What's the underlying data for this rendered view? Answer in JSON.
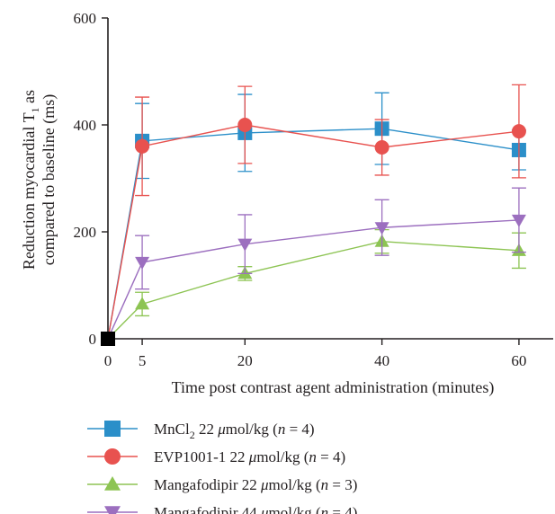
{
  "chart_data": {
    "type": "line",
    "xlabel": "Time post contrast agent administration (minutes)",
    "ylabel_line1_prefix": "Reduction myocardial T",
    "ylabel_line1_sub": "1",
    "ylabel_line1_suffix": " as",
    "ylabel_line2": "compared to baseline (ms)",
    "x_ticks": [
      "0",
      "5",
      "20",
      "40",
      "60"
    ],
    "y_ticks": [
      "0",
      "200",
      "400",
      "600"
    ],
    "xlim": [
      0,
      65
    ],
    "ylim": [
      0,
      600
    ],
    "grid": false,
    "legend_position": "bottom-left",
    "series": [
      {
        "name": "MnCl2 22 μmol/kg (n = 4)",
        "legend": {
          "pre": "MnCl",
          "sub": "2",
          "mid": " 22 ",
          "unit": "μ",
          "post": "mol/kg (",
          "n": "n",
          "tail": " = 4)"
        },
        "color": "#2b8fc9",
        "marker": "square",
        "x": [
          0,
          5,
          20,
          40,
          60
        ],
        "y": [
          0,
          370,
          385,
          393,
          353
        ],
        "err": [
          0,
          70,
          72,
          67,
          37
        ]
      },
      {
        "name": "EVP1001-1 22 μmol/kg (n = 4)",
        "legend": {
          "pre": "EVP1001-1",
          "sub": "",
          "mid": " 22 ",
          "unit": "μ",
          "post": "mol/kg (",
          "n": "n",
          "tail": " = 4)"
        },
        "color": "#e8524f",
        "marker": "circle",
        "x": [
          0,
          5,
          20,
          40,
          60
        ],
        "y": [
          0,
          360,
          400,
          358,
          388
        ],
        "err": [
          0,
          92,
          72,
          52,
          87
        ]
      },
      {
        "name": "Mangafodipir 22 μmol/kg (n = 3)",
        "legend": {
          "pre": "Mangafodipir",
          "sub": "",
          "mid": " 22 ",
          "unit": "μ",
          "post": "mol/kg (",
          "n": "n",
          "tail": " = 3)"
        },
        "color": "#8dc453",
        "marker": "triangle-up",
        "x": [
          0,
          5,
          20,
          40,
          60
        ],
        "y": [
          0,
          65,
          122,
          182,
          165
        ],
        "err": [
          0,
          22,
          13,
          22,
          33
        ]
      },
      {
        "name": "Mangafodipir 44 μmol/kg (n = 4)",
        "legend": {
          "pre": "Mangafodipir",
          "sub": "",
          "mid": " 44 ",
          "unit": "μ",
          "post": "mol/kg (",
          "n": "n",
          "tail": " = 4)"
        },
        "color": "#9c6fbf",
        "marker": "triangle-down",
        "x": [
          0,
          5,
          20,
          40,
          60
        ],
        "y": [
          0,
          143,
          177,
          208,
          222
        ],
        "err": [
          0,
          50,
          55,
          52,
          60
        ]
      }
    ]
  }
}
